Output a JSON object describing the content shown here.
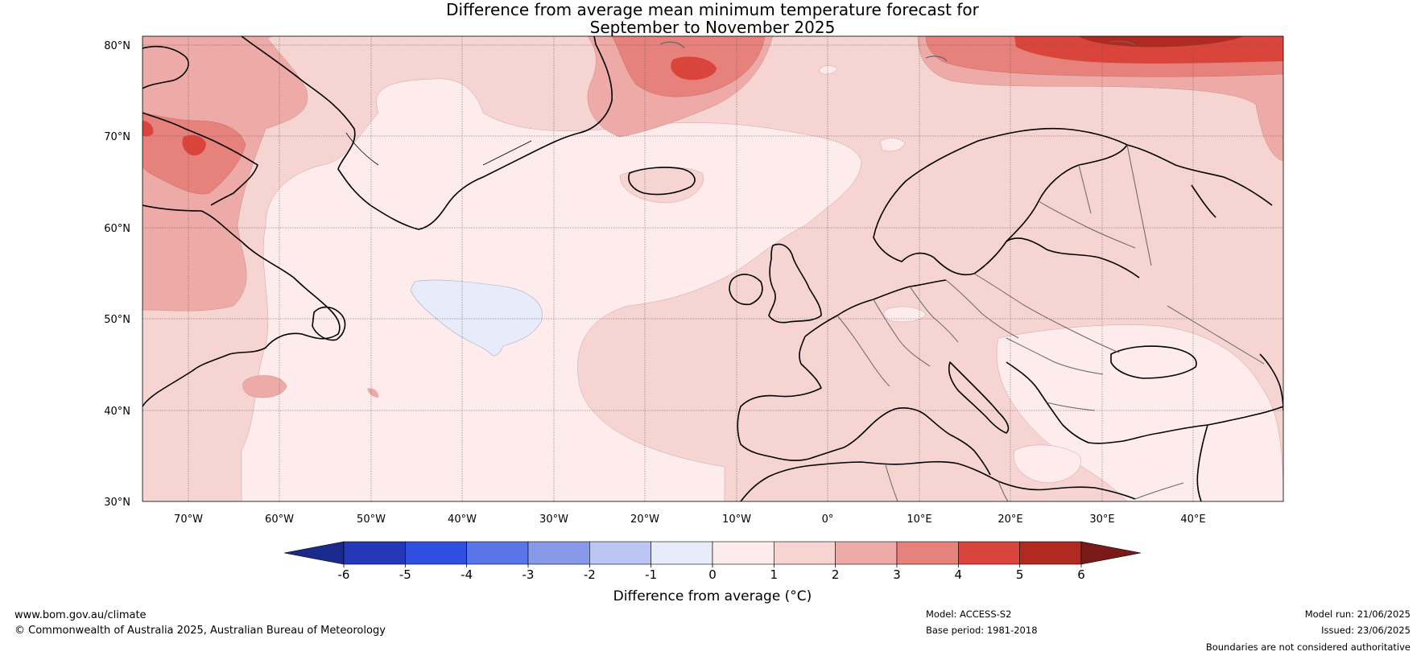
{
  "title": {
    "line1": "Difference from average mean minimum temperature forecast for",
    "line2": "September to November 2025"
  },
  "map": {
    "lat_labels": [
      "80°N",
      "70°N",
      "60°N",
      "50°N",
      "40°N",
      "30°N"
    ],
    "lon_labels": [
      "70°W",
      "60°W",
      "50°W",
      "40°W",
      "30°W",
      "20°W",
      "10°W",
      "0°",
      "10°E",
      "20°E",
      "30°E",
      "40°E"
    ],
    "extent": {
      "lon": [
        -75,
        50
      ],
      "lat": [
        30,
        81
      ]
    }
  },
  "colorbar": {
    "label": "Difference from average (°C)",
    "ticks": [
      "-6",
      "-5",
      "-4",
      "-3",
      "-2",
      "-1",
      "0",
      "1",
      "2",
      "3",
      "4",
      "5",
      "6"
    ],
    "colors": [
      "#1a2a8c",
      "#2438b8",
      "#2f4fe0",
      "#5a75e8",
      "#8899ea",
      "#bcc6f4",
      "#e8ecfa",
      "#fdeceb",
      "#f5d4d2",
      "#edaaa6",
      "#e6817b",
      "#d9453b",
      "#b02a22",
      "#7a1a18"
    ]
  },
  "footer": {
    "website": "www.bom.gov.au/climate",
    "copyright": "© Commonwealth of Australia 2025, Australian Bureau of Meteorology",
    "model": "Model: ACCESS-S2",
    "base_period": "Base period: 1981-2018",
    "model_run": "Model run: 21/06/2025",
    "issued": "Issued: 23/06/2025",
    "disclaimer": "Boundaries are not considered authoritative"
  }
}
